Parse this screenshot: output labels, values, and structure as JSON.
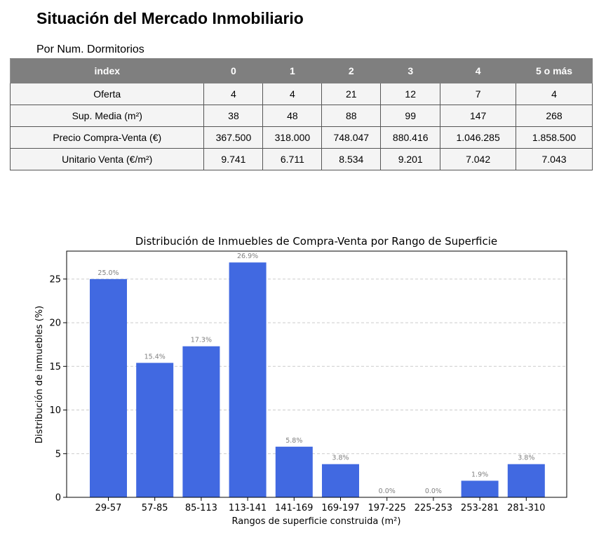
{
  "page": {
    "title": "Situación del Mercado Inmobiliario",
    "subtitle": "Por Num. Dormitorios"
  },
  "table": {
    "headers": [
      "index",
      "0",
      "1",
      "2",
      "3",
      "4",
      "5 o más"
    ],
    "rows": [
      [
        "Oferta",
        "4",
        "4",
        "21",
        "12",
        "7",
        "4"
      ],
      [
        "Sup. Media (m²)",
        "38",
        "48",
        "88",
        "99",
        "147",
        "268"
      ],
      [
        "Precio Compra-Venta (€)",
        "367.500",
        "318.000",
        "748.047",
        "880.416",
        "1.046.285",
        "1.858.500"
      ],
      [
        "Unitario Venta (€/m²)",
        "9.741",
        "6.711",
        "8.534",
        "9.201",
        "7.042",
        "7.043"
      ]
    ]
  },
  "chart_data": {
    "type": "bar",
    "title": "Distribución de Inmuebles de Compra-Venta por Rango de Superficie",
    "xlabel": "Rangos de superficie construida (m²)",
    "ylabel": "Distribución de inmuebles (%)",
    "categories": [
      "29-57",
      "57-85",
      "85-113",
      "113-141",
      "141-169",
      "169-197",
      "197-225",
      "225-253",
      "253-281",
      "281-310"
    ],
    "values": [
      25.0,
      15.4,
      17.3,
      26.9,
      5.8,
      3.8,
      0.0,
      0.0,
      1.9,
      3.8
    ],
    "data_labels": [
      "25.0%",
      "15.4%",
      "17.3%",
      "26.9%",
      "5.8%",
      "3.8%",
      "0.0%",
      "0.0%",
      "1.9%",
      "3.8%"
    ],
    "yticks": [
      0,
      5,
      10,
      15,
      20,
      25
    ],
    "ylim": [
      0,
      28.2
    ],
    "grid": "horizontal dashed",
    "legend": "none",
    "bar_color": "#4169e1",
    "label_color": "#808080",
    "grid_color": "#cccccc"
  }
}
